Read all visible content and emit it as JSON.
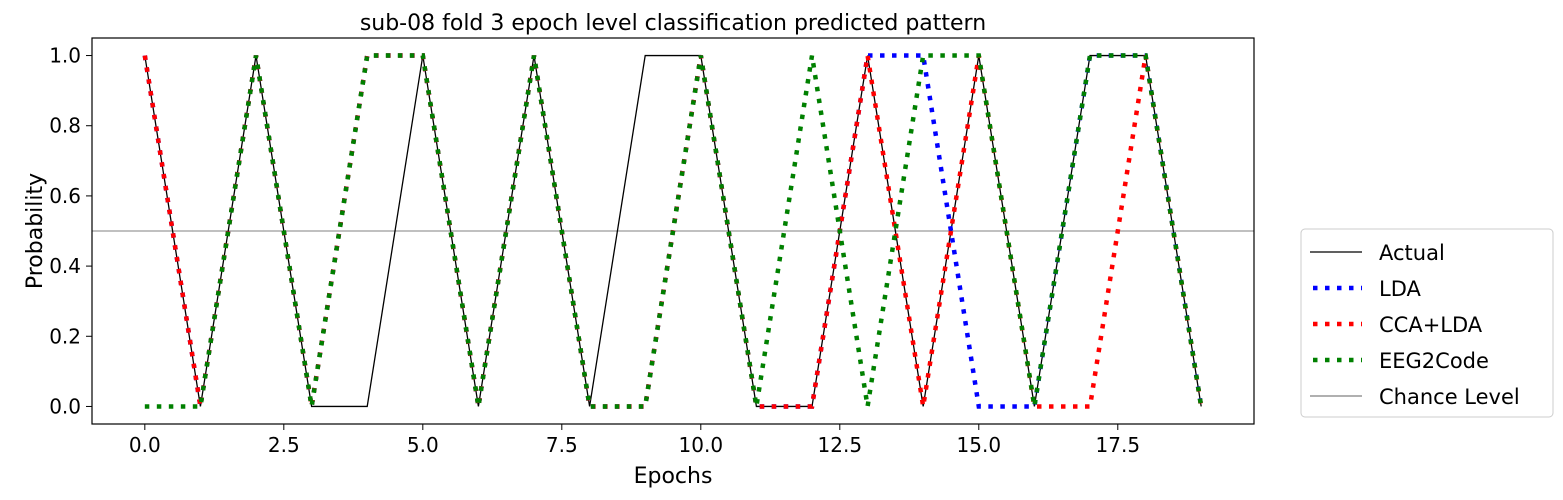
{
  "chart_data": {
    "type": "line",
    "title": "sub-08 fold 3 epoch level classification predicted pattern",
    "xlabel": "Epochs",
    "ylabel": "Probability",
    "xlim": [
      -0.95,
      19.95
    ],
    "ylim": [
      -0.05,
      1.05
    ],
    "xticks": [
      0,
      2.5,
      5,
      7.5,
      10,
      12.5,
      15,
      17.5
    ],
    "xtick_labels": [
      "0.0",
      "2.5",
      "5.0",
      "7.5",
      "10.0",
      "12.5",
      "15.0",
      "17.5"
    ],
    "yticks": [
      0,
      0.2,
      0.4,
      0.6,
      0.8,
      1.0
    ],
    "ytick_labels": [
      "0.0",
      "0.2",
      "0.4",
      "0.6",
      "0.8",
      "1.0"
    ],
    "grid": false,
    "legend_position": "outside-right-bottom",
    "series": [
      {
        "name": "Actual",
        "style": "solid",
        "color": "#000000",
        "x": [
          0,
          1,
          2,
          3,
          4,
          5,
          6,
          7,
          8,
          9,
          10,
          11,
          12,
          13,
          14,
          15,
          16,
          17,
          18,
          19
        ],
        "y": [
          1,
          0,
          1,
          0,
          0,
          1,
          0,
          1,
          0,
          1,
          1,
          0,
          0,
          1,
          0,
          1,
          0,
          1,
          1,
          0
        ]
      },
      {
        "name": "LDA",
        "style": "dotted",
        "color": "#0000ff",
        "x": [
          0,
          1,
          2,
          3,
          4,
          5,
          6,
          7,
          8,
          9,
          10,
          11,
          12,
          13,
          14,
          15,
          16,
          17,
          18,
          19
        ],
        "y": [
          1,
          0,
          1,
          0,
          1,
          1,
          0,
          1,
          0,
          0,
          1,
          0,
          0,
          1,
          1,
          0,
          0,
          1,
          1,
          0
        ]
      },
      {
        "name": "CCA+LDA",
        "style": "dotted",
        "color": "#ff0000",
        "x": [
          0,
          1,
          2,
          3,
          4,
          5,
          6,
          7,
          8,
          9,
          10,
          11,
          12,
          13,
          14,
          15,
          16,
          17,
          18,
          19
        ],
        "y": [
          1,
          0,
          1,
          0,
          1,
          1,
          0,
          1,
          0,
          0,
          1,
          0,
          0,
          1,
          0,
          1,
          0,
          0,
          1,
          0
        ]
      },
      {
        "name": "EEG2Code",
        "style": "dotted",
        "color": "#008000",
        "x": [
          0,
          1,
          2,
          3,
          4,
          5,
          6,
          7,
          8,
          9,
          10,
          11,
          12,
          13,
          14,
          15,
          16,
          17,
          18,
          19
        ],
        "y": [
          0,
          0,
          1,
          0,
          1,
          1,
          0,
          1,
          0,
          0,
          1,
          0,
          1,
          0,
          1,
          1,
          0,
          1,
          1,
          0
        ]
      },
      {
        "name": "Chance Level",
        "style": "solid",
        "color": "#808080",
        "x": [
          -0.95,
          19.95
        ],
        "y": [
          0.5,
          0.5
        ]
      }
    ]
  }
}
